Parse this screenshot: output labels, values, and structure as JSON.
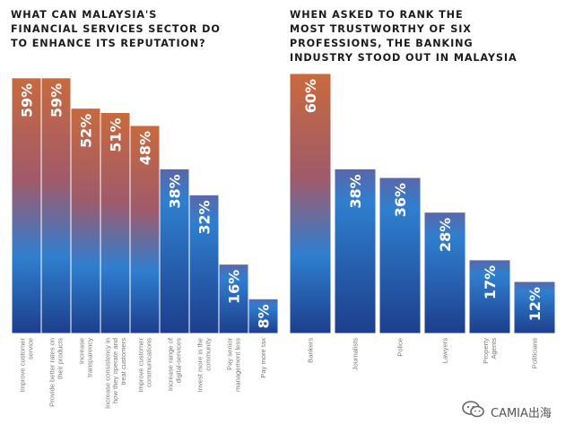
{
  "chart_data": [
    {
      "type": "bar",
      "title": "WHAT CAN MALAYSIA'S\nFINANCIAL SERVICES SECTOR DO\nTO ENHANCE ITS REPUTATION?",
      "categories": [
        "Improve customer\nservice",
        "Provide better rates on\ntheir products",
        "Increase\ntransparency",
        "Increase consistency in\nhow they operate and\ntreat customers",
        "Improve customer\ncommunications",
        "Increase range of\ndigital-services",
        "Invest more in the\ncommunity",
        "Pay senior\nmanagement less",
        "Pay more tax"
      ],
      "values": [
        59,
        59,
        52,
        51,
        48,
        38,
        32,
        16,
        8
      ],
      "value_labels": [
        "59%",
        "59%",
        "52%",
        "51%",
        "48%",
        "38%",
        "32%",
        "16%",
        "8%"
      ],
      "ylim": [
        0,
        60
      ],
      "highlight_count": 5
    },
    {
      "type": "bar",
      "title": "WHEN ASKED TO RANK THE\nMOST TRUSTWORTHY OF SIX\nPROFESSIONS, THE BANKING\nINDUSTRY STOOD OUT IN MALAYSIA",
      "categories": [
        "Bankers",
        "Journalists",
        "Police",
        "Lawyers",
        "Property\nAgents",
        "Politicians"
      ],
      "values": [
        60,
        38,
        36,
        28,
        17,
        12
      ],
      "value_labels": [
        "60%",
        "38%",
        "36%",
        "28%",
        "17%",
        "12%"
      ],
      "ylim": [
        0,
        60
      ],
      "highlight_count": 1
    }
  ],
  "colors": {
    "orange": "#c96a3e",
    "blue_light": "#2f7fcf",
    "blue_dark": "#1d3e8c",
    "purple_top": "#5a67a8"
  },
  "watermark": {
    "text": "CAMIA出海",
    "icon": "wechat-icon"
  }
}
